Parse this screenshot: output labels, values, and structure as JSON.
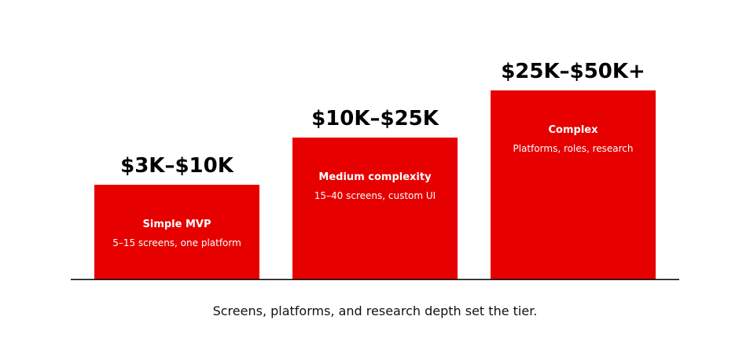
{
  "chart_data": {
    "type": "bar",
    "categories": [
      "Simple MVP",
      "Medium complexity",
      "Complex"
    ],
    "values": [
      2,
      3,
      4
    ],
    "price_labels": [
      "$3K–$10K",
      "$10K–$25K",
      "$25K–$50K+"
    ],
    "descriptions": [
      "5–15 screens, one platform",
      "15–40 screens, custom UI",
      "Platforms, roles, research"
    ],
    "ylim": [
      0,
      4.6
    ],
    "grid": false,
    "bar_color": "#e60000"
  },
  "caption": "Screens, platforms, and research depth set the tier."
}
